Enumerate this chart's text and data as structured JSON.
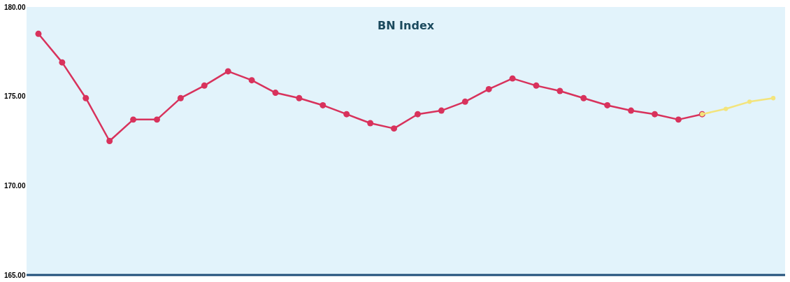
{
  "chart_data": {
    "type": "line",
    "title": "BN Index",
    "categories": [
      null,
      null,
      null,
      null,
      null,
      null,
      null,
      null,
      null,
      null,
      null,
      null,
      null,
      null,
      null,
      null,
      null,
      null,
      null,
      null,
      null,
      null,
      null,
      null,
      null,
      null,
      null,
      null,
      null,
      null,
      null,
      null
    ],
    "series": [
      {
        "color": "#d8325c",
        "values": [
          178.5,
          176.9,
          174.9,
          172.5,
          173.7,
          173.7,
          174.9,
          175.6,
          176.4,
          175.9,
          175.2,
          174.9,
          174.5,
          174.0,
          173.5,
          173.2,
          174.0,
          174.2,
          174.7,
          175.4,
          176.0,
          175.6,
          175.3,
          174.9,
          174.5,
          174.2,
          174.0,
          173.7,
          174.0,
          null,
          null,
          null
        ]
      },
      {
        "color": "#f3e47c",
        "values": [
          null,
          null,
          null,
          null,
          null,
          null,
          null,
          null,
          null,
          null,
          null,
          null,
          null,
          null,
          null,
          null,
          null,
          null,
          null,
          null,
          null,
          null,
          null,
          null,
          null,
          null,
          null,
          null,
          174.0,
          174.3,
          174.7,
          174.9
        ]
      }
    ],
    "ylim": [
      165,
      180
    ],
    "yticks": [
      {
        "value": 165,
        "label": "165.00"
      },
      {
        "value": 170,
        "label": "170.00"
      },
      {
        "value": 175,
        "label": "175.00"
      },
      {
        "value": 180,
        "label": "180.00"
      }
    ],
    "marker": "circle",
    "tick_labels": "y"
  }
}
